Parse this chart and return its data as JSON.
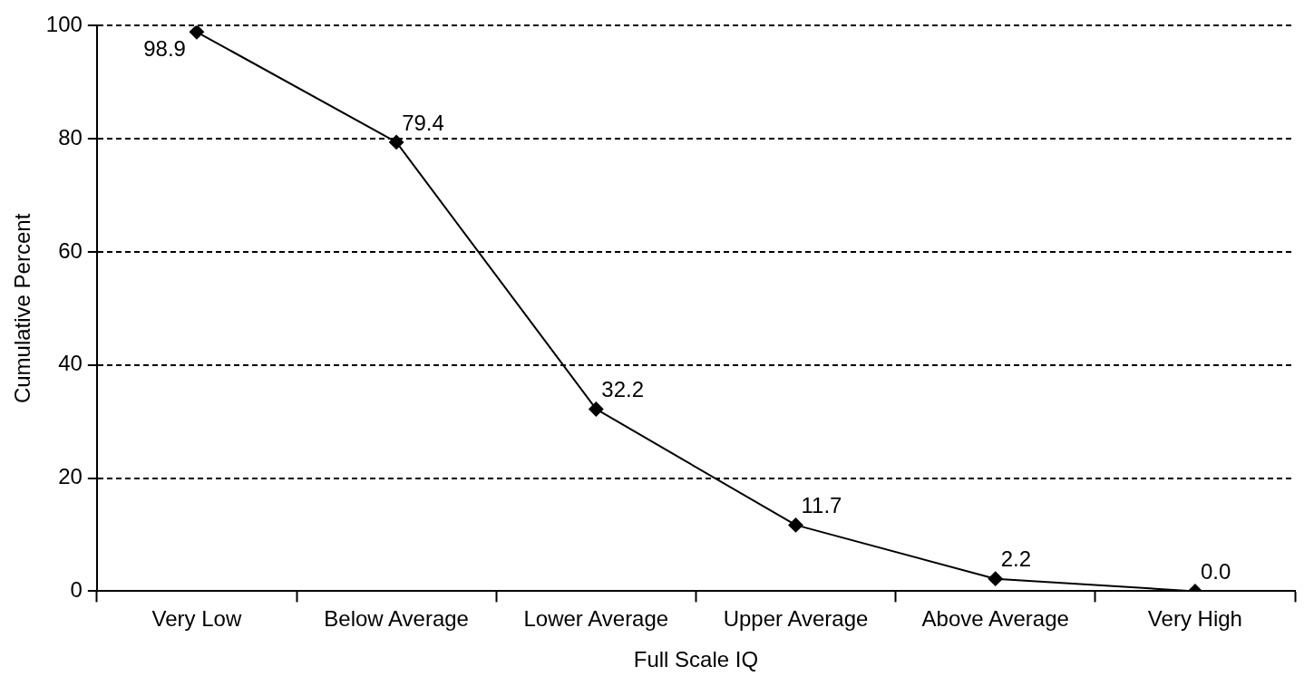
{
  "chart_data": {
    "type": "line",
    "xlabel": "Full Scale IQ",
    "ylabel": "Cumulative Percent",
    "categories": [
      "Very Low",
      "Below Average",
      "Lower Average",
      "Upper Average",
      "Above Average",
      "Very High"
    ],
    "series": [
      {
        "color": "#000000",
        "values": [
          98.9,
          79.4,
          32.2,
          11.7,
          2.2,
          0.0
        ],
        "value_labels": [
          "98.9",
          "79.4",
          "32.2",
          "11.7",
          "2.2",
          "0.0"
        ]
      }
    ],
    "ylim": [
      0,
      100
    ],
    "yticks": [
      0,
      20,
      40,
      60,
      80,
      100
    ],
    "grid": "y",
    "legend": false,
    "marker": "diamond",
    "line_style": "solid"
  }
}
